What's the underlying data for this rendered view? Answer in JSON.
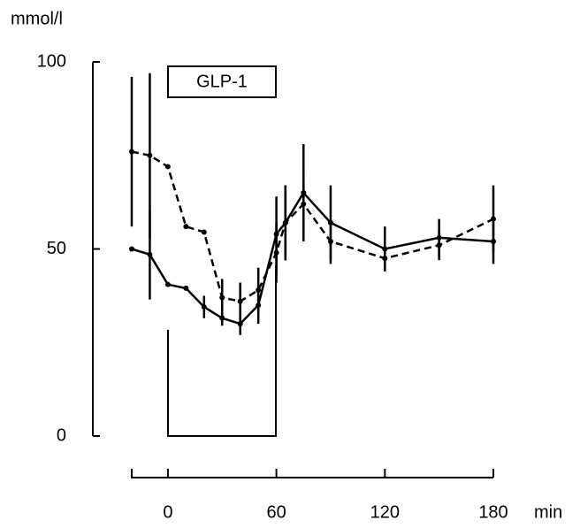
{
  "chart_data": {
    "type": "line",
    "ylabel": "mmol/l",
    "xlabel": "min",
    "annotation": "GLP-1",
    "x": [
      -20,
      -10,
      0,
      10,
      20,
      30,
      40,
      50,
      60,
      65,
      75,
      90,
      120,
      150,
      180
    ],
    "series": [
      {
        "color": "#000000",
        "dash": false,
        "values": [
          50,
          48.5,
          40.5,
          39.5,
          34.5,
          31.5,
          30,
          35,
          54,
          57,
          65,
          57,
          50,
          53,
          52
        ],
        "errors": [
          0,
          12,
          0,
          0,
          3,
          2,
          3,
          5,
          10,
          10,
          13,
          10,
          6,
          5,
          6
        ]
      },
      {
        "color": "#000000",
        "dash": true,
        "values": [
          76,
          75,
          72,
          56,
          54.5,
          37,
          36,
          39,
          49,
          57,
          62,
          52,
          47.5,
          51,
          58
        ],
        "errors": [
          20,
          22,
          0,
          0,
          0,
          5,
          5,
          6,
          8,
          10,
          8,
          6,
          3,
          4,
          9
        ]
      }
    ],
    "xlim": [
      -20,
      180
    ],
    "xticks": [
      0,
      60,
      120,
      180
    ],
    "ylim": [
      0,
      100
    ],
    "yticks": [
      0,
      50,
      100
    ]
  }
}
